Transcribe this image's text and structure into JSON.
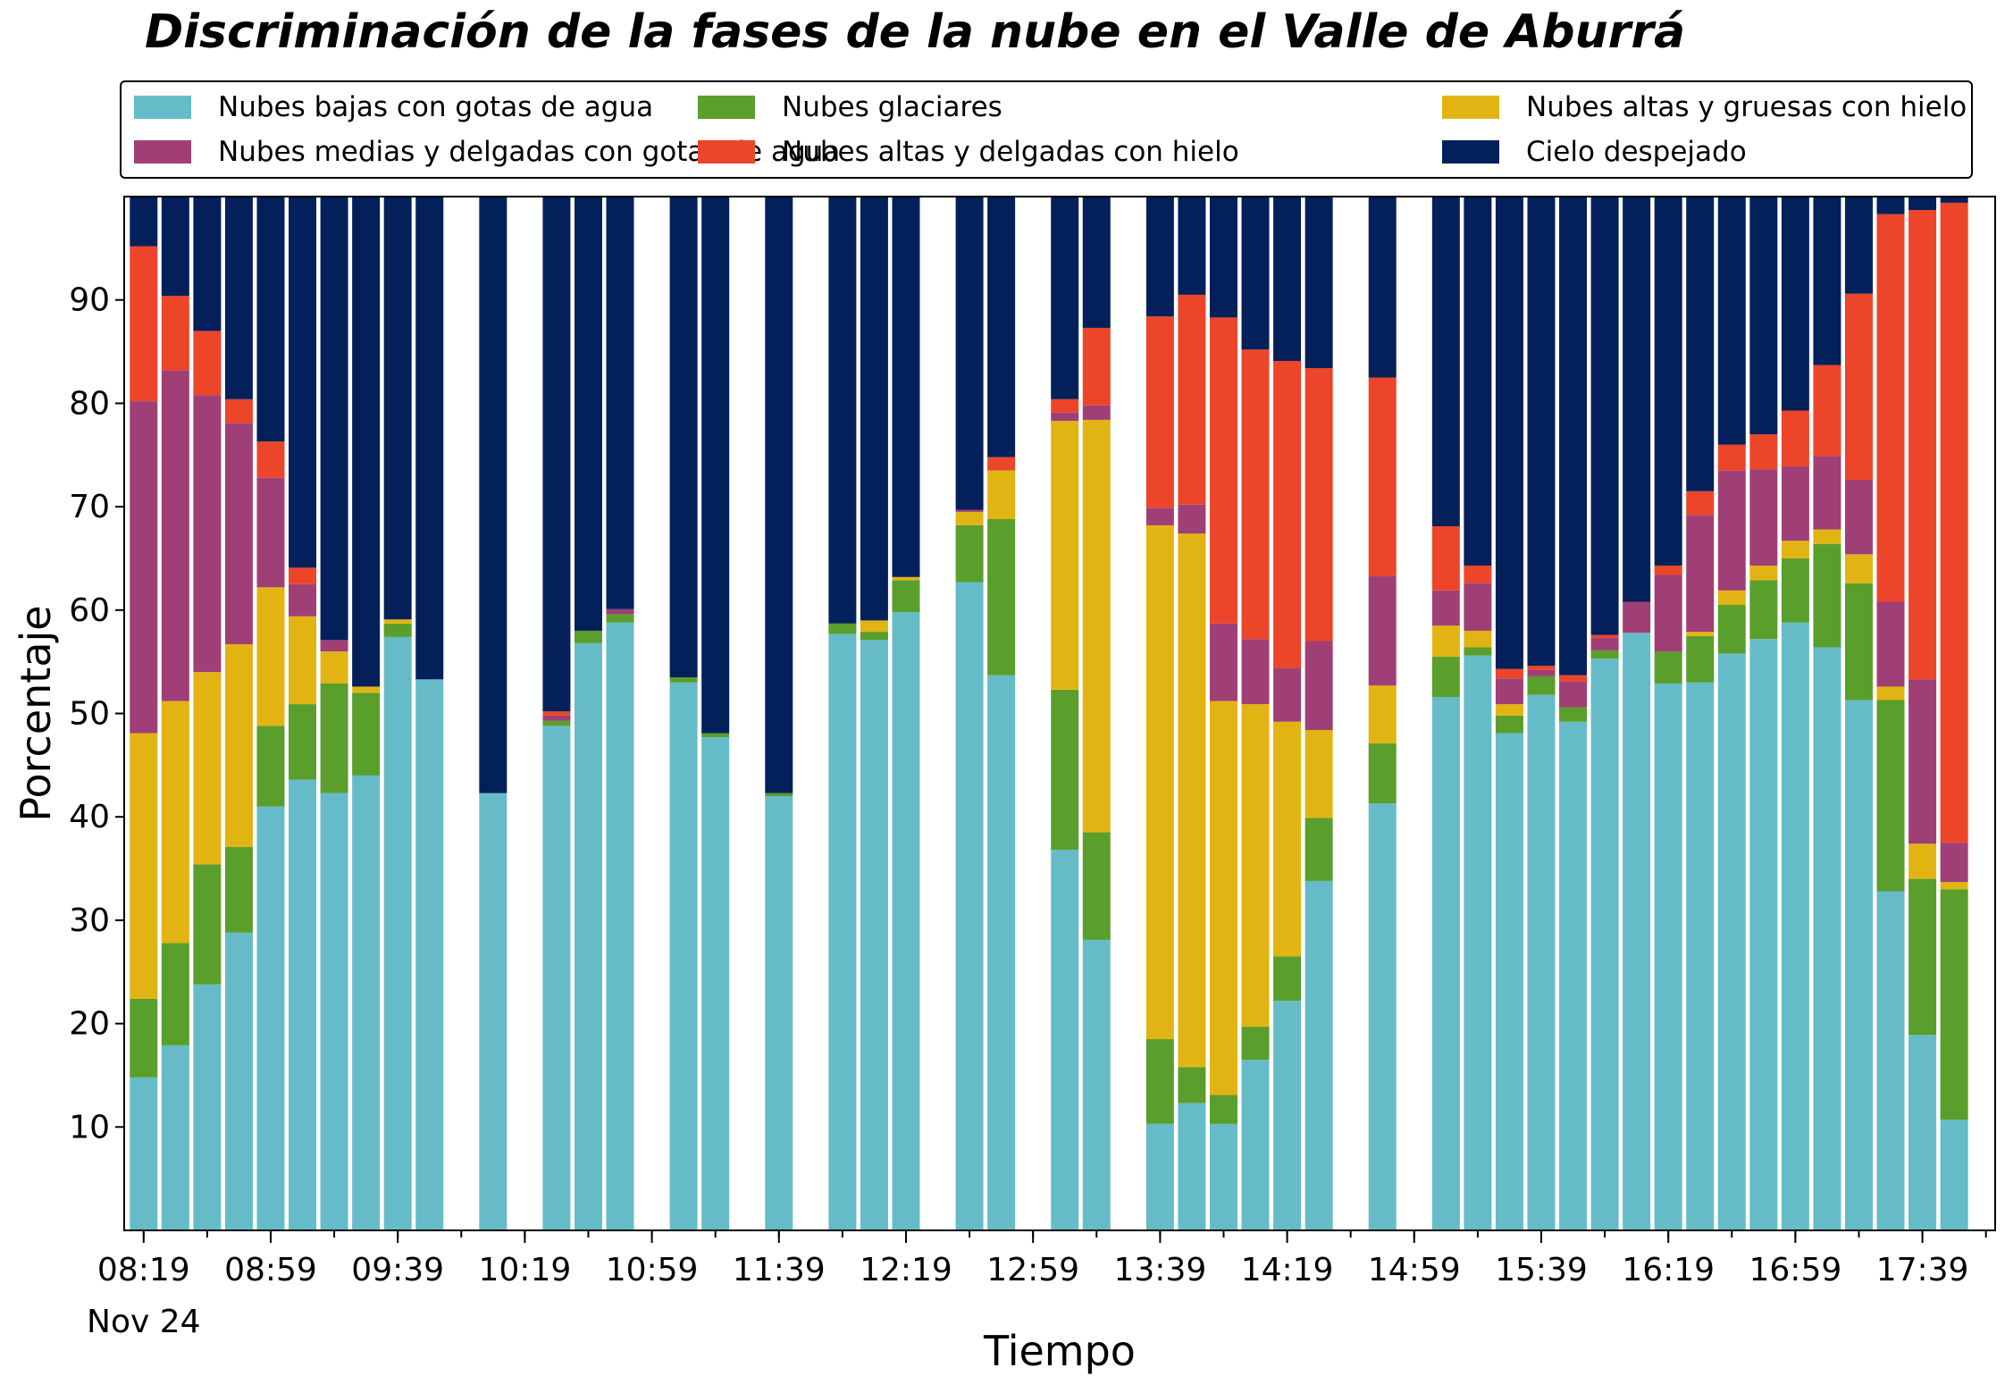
{
  "chart_data": {
    "type": "bar",
    "stacked": true,
    "title": "Discriminación de la fases de la nube en el Valle de Aburrá",
    "xlabel": "Tiempo",
    "ylabel": "Porcentaje",
    "ylim": [
      0,
      100
    ],
    "yticks": [
      10,
      20,
      30,
      40,
      50,
      60,
      70,
      80,
      90
    ],
    "x_tick_labels": [
      "08:19",
      "08:59",
      "09:39",
      "10:19",
      "10:59",
      "11:39",
      "12:19",
      "12:59",
      "13:39",
      "14:19",
      "14:59",
      "15:39",
      "16:19",
      "16:59",
      "17:39"
    ],
    "x_date_label": "Nov 24",
    "legend_position": "top",
    "legend_columns": 3,
    "grid": false,
    "categories": [
      "08:19",
      "08:29",
      "08:39",
      "08:49",
      "08:59",
      "09:09",
      "09:19",
      "09:29",
      "09:39",
      "09:49",
      "09:59",
      "10:09",
      "10:19",
      "10:29",
      "10:39",
      "10:49",
      "10:59",
      "11:09",
      "11:19",
      "11:29",
      "11:39",
      "11:49",
      "11:59",
      "12:09",
      "12:19",
      "12:29",
      "12:39",
      "12:49",
      "12:59",
      "13:09",
      "13:19",
      "13:29",
      "13:39",
      "13:49",
      "13:59",
      "14:09",
      "14:19",
      "14:29",
      "14:39",
      "14:49",
      "14:59",
      "15:09",
      "15:19",
      "15:29",
      "15:39",
      "15:49",
      "15:59",
      "16:09",
      "16:19",
      "16:29",
      "16:39",
      "16:49",
      "16:59",
      "17:09",
      "17:19",
      "17:29",
      "17:39",
      "17:49"
    ],
    "series": [
      {
        "name": "Nubes bajas con gotas de agua",
        "color": "#65bcc8",
        "values": [
          14.8,
          17.9,
          23.8,
          28.8,
          41.0,
          43.6,
          42.3,
          44.0,
          57.4,
          53.3,
          null,
          42.3,
          null,
          48.8,
          56.8,
          58.8,
          null,
          53.0,
          47.7,
          null,
          42.0,
          null,
          57.7,
          57.1,
          59.8,
          null,
          62.7,
          53.7,
          null,
          36.8,
          28.1,
          null,
          10.3,
          12.3,
          10.3,
          16.5,
          22.2,
          33.8,
          null,
          41.3,
          null,
          51.6,
          55.6,
          48.1,
          51.8,
          49.2,
          55.3,
          57.8,
          52.9,
          53.0,
          55.8,
          57.2,
          58.8,
          56.4,
          51.3,
          32.8,
          18.9,
          10.7
        ]
      },
      {
        "name": "Nubes glaciares",
        "color": "#5a9e2c",
        "values": [
          7.6,
          9.9,
          11.6,
          8.3,
          7.8,
          7.3,
          10.6,
          8.0,
          1.3,
          0,
          null,
          0,
          null,
          0.5,
          1.2,
          0.8,
          null,
          0.5,
          0.4,
          null,
          0.3,
          null,
          1.0,
          0.8,
          3.1,
          null,
          5.5,
          15.1,
          null,
          15.5,
          10.4,
          null,
          8.2,
          3.5,
          2.8,
          3.2,
          4.3,
          6.1,
          null,
          5.8,
          null,
          3.9,
          0.8,
          1.7,
          1.8,
          1.4,
          0.8,
          0,
          3.1,
          4.5,
          4.7,
          5.7,
          6.2,
          10.0,
          11.3,
          18.5,
          15.1,
          22.3
        ]
      },
      {
        "name": "Nubes altas y gruesas con hielo",
        "color": "#e2b413",
        "values": [
          25.7,
          23.4,
          18.6,
          19.6,
          13.4,
          8.5,
          3.1,
          0.6,
          0.4,
          0,
          null,
          0,
          null,
          0,
          0,
          0,
          null,
          0,
          0,
          null,
          0,
          null,
          0,
          1.1,
          0.3,
          null,
          1.3,
          4.7,
          null,
          26.0,
          39.9,
          null,
          49.7,
          51.6,
          38.1,
          31.2,
          22.7,
          8.5,
          null,
          5.6,
          null,
          3.0,
          1.6,
          1.1,
          0,
          0,
          0,
          0,
          0,
          0.4,
          1.4,
          1.4,
          1.7,
          1.4,
          2.8,
          1.3,
          3.4,
          0.7
        ]
      },
      {
        "name": "Nubes medias y delgadas con gotas de agua",
        "color": "#a03f76",
        "values": [
          32.1,
          32.0,
          26.8,
          21.4,
          10.6,
          3.1,
          1.1,
          0,
          0,
          0,
          null,
          0,
          null,
          0.5,
          0,
          0.5,
          null,
          0,
          0,
          null,
          0,
          null,
          0,
          0,
          0,
          null,
          0.2,
          0,
          null,
          0.8,
          1.4,
          null,
          1.7,
          2.8,
          7.5,
          6.3,
          5.2,
          8.6,
          null,
          10.6,
          null,
          3.4,
          4.6,
          2.5,
          0.6,
          2.5,
          1.2,
          3.0,
          7.4,
          11.3,
          11.6,
          9.3,
          7.2,
          7.1,
          7.2,
          8.2,
          15.9,
          3.8
        ]
      },
      {
        "name": "Nubes altas y delgadas con hielo",
        "color": "#ec452a",
        "values": [
          15.0,
          7.2,
          6.2,
          2.3,
          3.5,
          1.6,
          0,
          0,
          0,
          0,
          null,
          0,
          null,
          0.4,
          0,
          0,
          null,
          0,
          0,
          null,
          0,
          null,
          0,
          0,
          0,
          null,
          0,
          1.3,
          null,
          1.3,
          7.5,
          null,
          18.5,
          20.3,
          29.6,
          28.0,
          29.7,
          26.4,
          null,
          19.2,
          null,
          6.2,
          1.7,
          0.9,
          0.4,
          0.6,
          0.3,
          0,
          0.9,
          2.3,
          2.5,
          3.4,
          5.4,
          8.8,
          18.0,
          37.5,
          45.4,
          61.9
        ]
      },
      {
        "name": "Cielo despejado",
        "color": "#04205b",
        "values": [
          4.8,
          9.6,
          13.0,
          19.6,
          23.7,
          35.9,
          42.9,
          47.4,
          40.9,
          46.7,
          null,
          57.7,
          null,
          49.8,
          42.0,
          39.9,
          null,
          46.5,
          51.9,
          null,
          57.7,
          null,
          41.3,
          41.0,
          36.8,
          null,
          30.3,
          25.2,
          null,
          19.6,
          12.7,
          null,
          11.6,
          9.5,
          11.7,
          14.8,
          15.9,
          16.6,
          null,
          17.5,
          null,
          31.9,
          35.7,
          45.7,
          45.4,
          46.3,
          42.4,
          39.2,
          35.7,
          28.5,
          24.0,
          23.0,
          20.7,
          16.3,
          9.4,
          1.7,
          1.3,
          0.6
        ]
      }
    ]
  }
}
